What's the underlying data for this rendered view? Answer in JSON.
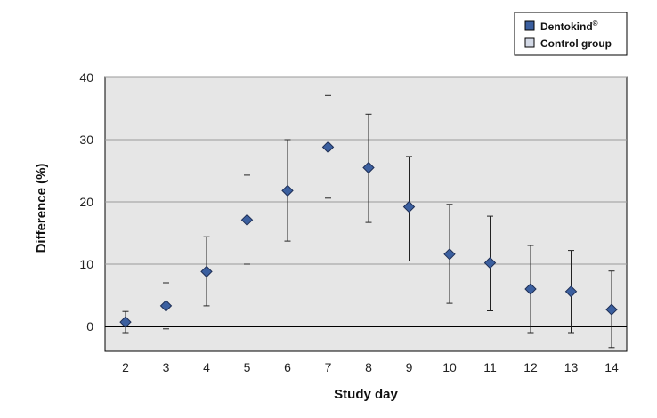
{
  "chart_data": {
    "type": "scatter",
    "title": "",
    "xlabel": "Study day",
    "ylabel": "Difference (%)",
    "categories": [
      "2",
      "3",
      "4",
      "5",
      "6",
      "7",
      "8",
      "9",
      "10",
      "11",
      "12",
      "13",
      "14"
    ],
    "ylim": [
      -4,
      40
    ],
    "yticks": [
      0,
      10,
      20,
      30,
      40
    ],
    "grid": true,
    "legend_position": "top-right",
    "series": [
      {
        "name": "Dentokind®",
        "color": "#3b5f9f",
        "marker": "diamond",
        "values": [
          0.7,
          3.3,
          8.8,
          17.1,
          21.8,
          28.8,
          25.5,
          19.2,
          11.6,
          10.2,
          6.0,
          5.6,
          2.7
        ],
        "err_low": [
          -1.0,
          -0.4,
          3.3,
          10.0,
          13.7,
          20.6,
          16.7,
          10.5,
          3.7,
          2.5,
          -1.0,
          -1.0,
          -3.4
        ],
        "err_high": [
          2.4,
          7.0,
          14.4,
          24.3,
          30.0,
          37.1,
          34.1,
          27.3,
          19.6,
          17.7,
          13.0,
          12.2,
          8.9
        ]
      },
      {
        "name": "Control group",
        "color": "#d3d9e6",
        "marker": "square",
        "values": []
      }
    ]
  },
  "legend": {
    "items": [
      {
        "label": "Dentokind",
        "sup": "®",
        "color": "#3b5f9f"
      },
      {
        "label": "Control group",
        "sup": "",
        "color": "#d3d9e6"
      }
    ]
  }
}
